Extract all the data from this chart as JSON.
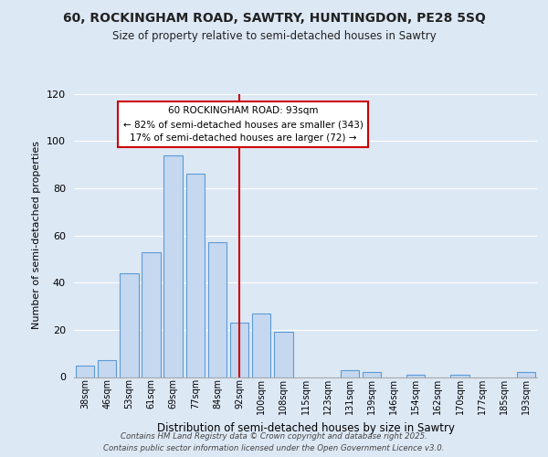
{
  "title_line1": "60, ROCKINGHAM ROAD, SAWTRY, HUNTINGDON, PE28 5SQ",
  "title_line2": "Size of property relative to semi-detached houses in Sawtry",
  "xlabel": "Distribution of semi-detached houses by size in Sawtry",
  "ylabel": "Number of semi-detached properties",
  "categories": [
    "38sqm",
    "46sqm",
    "53sqm",
    "61sqm",
    "69sqm",
    "77sqm",
    "84sqm",
    "92sqm",
    "100sqm",
    "108sqm",
    "115sqm",
    "123sqm",
    "131sqm",
    "139sqm",
    "146sqm",
    "154sqm",
    "162sqm",
    "170sqm",
    "177sqm",
    "185sqm",
    "193sqm"
  ],
  "values": [
    5,
    7,
    44,
    53,
    94,
    86,
    57,
    23,
    27,
    19,
    0,
    0,
    3,
    2,
    0,
    1,
    0,
    1,
    0,
    0,
    2
  ],
  "bar_color": "#c5d8f0",
  "bar_edge_color": "#5b9bd5",
  "vertical_line_index": 7,
  "vertical_line_color": "#cc0000",
  "annotation_line1": "60 ROCKINGHAM ROAD: 93sqm",
  "annotation_line2": "← 82% of semi-detached houses are smaller (343)",
  "annotation_line3": "17% of semi-detached houses are larger (72) →",
  "ylim": [
    0,
    120
  ],
  "yticks": [
    0,
    20,
    40,
    60,
    80,
    100,
    120
  ],
  "footer_line1": "Contains HM Land Registry data © Crown copyright and database right 2025.",
  "footer_line2": "Contains public sector information licensed under the Open Government Licence v3.0.",
  "background_color": "#dde8f5",
  "plot_bg_color": "#dde8f5",
  "grid_color": "#ffffff",
  "ann_box_edgecolor": "#cc0000",
  "ann_box_facecolor": "#ffffff"
}
